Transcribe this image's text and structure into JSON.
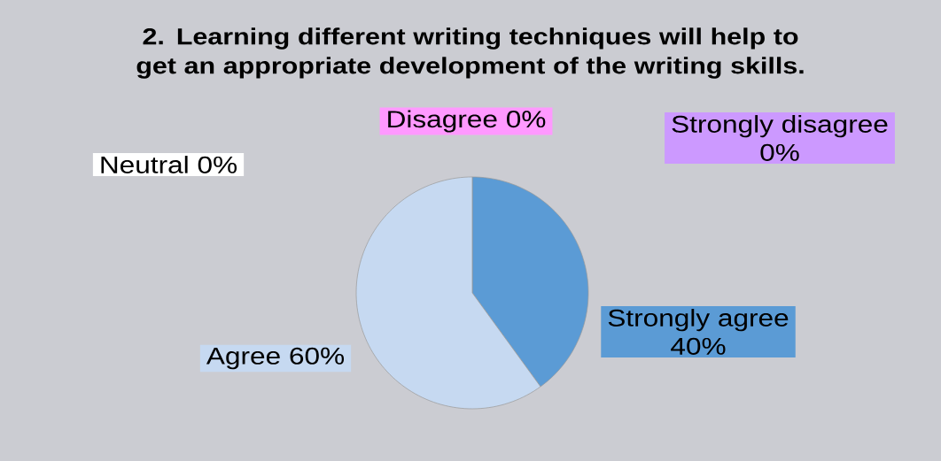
{
  "chart_data": {
    "type": "pie",
    "title": "2. Learning different writing techniques will help to get an appropriate development of the writing skills.",
    "categories": [
      "Strongly agree",
      "Agree",
      "Neutral",
      "Disagree",
      "Strongly disagree"
    ],
    "values": [
      40,
      60,
      0,
      0,
      0
    ],
    "colors": [
      "#5b9bd5",
      "#c6d9f1",
      "#ffffff",
      "#ff99ff",
      "#cc99ff"
    ],
    "value_labels": [
      "40%",
      "60%",
      "0%",
      "0%",
      "0%"
    ]
  }
}
